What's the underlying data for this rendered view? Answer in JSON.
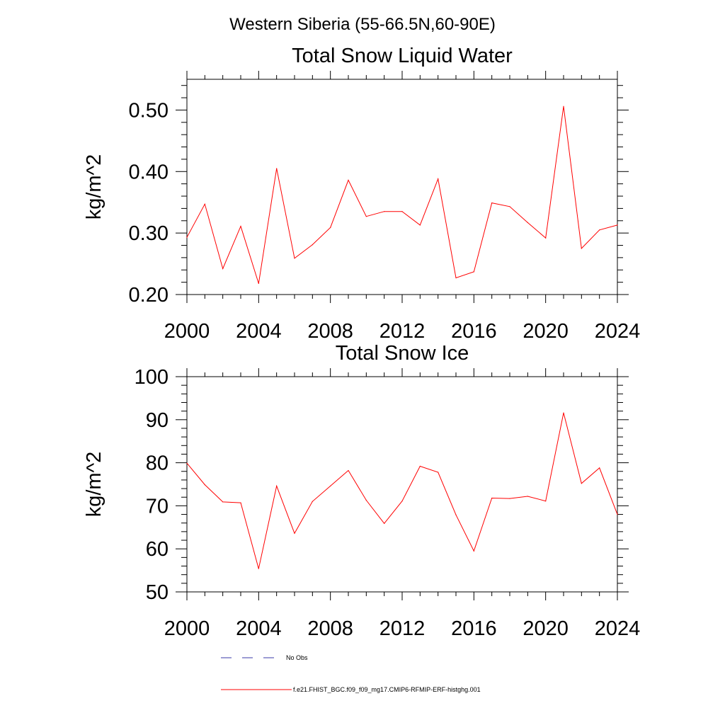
{
  "figure": {
    "title": "Western Siberia (55-66.5N,60-90E)",
    "series_color": "#ff0000",
    "obs_color": "#3a3aa8"
  },
  "legend": {
    "entries": [
      {
        "label": "No Obs",
        "style": "dashed"
      },
      {
        "label": "f.e21.FHIST_BGC.f09_f09_mg17.CMIP6-RFMIP-ERF-histghg.001",
        "style": "solid"
      }
    ]
  },
  "chart_data": [
    {
      "type": "line",
      "title": "Total Snow Liquid Water",
      "xlabel": "",
      "ylabel": "kg/m^2",
      "xlim": [
        2000,
        2024
      ],
      "ylim": [
        0.2,
        0.55
      ],
      "xticks": [
        2000,
        2004,
        2008,
        2012,
        2016,
        2020,
        2024
      ],
      "xtick_labels": [
        "2000",
        "2004",
        "2008",
        "2012",
        "2016",
        "2020",
        "2024"
      ],
      "yticks": [
        0.2,
        0.3,
        0.4,
        0.5
      ],
      "ytick_labels": [
        "0.20",
        "0.30",
        "0.40",
        "0.50"
      ],
      "yminor": 0.02,
      "series": [
        {
          "name": "f.e21.FHIST_BGC.f09_f09_mg17.CMIP6-RFMIP-ERF-histghg.001",
          "x": [
            2000,
            2001,
            2002,
            2003,
            2004,
            2005,
            2006,
            2007,
            2008,
            2009,
            2010,
            2011,
            2012,
            2013,
            2014,
            2015,
            2016,
            2017,
            2018,
            2019,
            2020,
            2021,
            2022,
            2023,
            2024
          ],
          "values": [
            0.293,
            0.347,
            0.242,
            0.311,
            0.218,
            0.405,
            0.259,
            0.281,
            0.309,
            0.386,
            0.327,
            0.335,
            0.335,
            0.313,
            0.388,
            0.227,
            0.237,
            0.349,
            0.343,
            0.317,
            0.292,
            0.506,
            0.275,
            0.305,
            0.313
          ]
        }
      ]
    },
    {
      "type": "line",
      "title": "Total Snow Ice",
      "xlabel": "",
      "ylabel": "kg/m^2",
      "xlim": [
        2000,
        2024
      ],
      "ylim": [
        50,
        100
      ],
      "xticks": [
        2000,
        2004,
        2008,
        2012,
        2016,
        2020,
        2024
      ],
      "xtick_labels": [
        "2000",
        "2004",
        "2008",
        "2012",
        "2016",
        "2020",
        "2024"
      ],
      "yticks": [
        50,
        60,
        70,
        80,
        90,
        100
      ],
      "ytick_labels": [
        "50",
        "60",
        "70",
        "80",
        "90",
        "100"
      ],
      "yminor": 2,
      "series": [
        {
          "name": "f.e21.FHIST_BGC.f09_f09_mg17.CMIP6-RFMIP-ERF-histghg.001",
          "x": [
            2000,
            2001,
            2002,
            2003,
            2004,
            2005,
            2006,
            2007,
            2008,
            2009,
            2010,
            2011,
            2012,
            2013,
            2014,
            2015,
            2016,
            2017,
            2018,
            2019,
            2020,
            2021,
            2022,
            2023,
            2024
          ],
          "values": [
            79.9,
            74.9,
            70.9,
            70.7,
            55.4,
            74.6,
            63.6,
            71.0,
            74.6,
            78.2,
            71.3,
            65.9,
            71.1,
            79.2,
            77.8,
            67.9,
            59.5,
            71.8,
            71.7,
            72.2,
            71.1,
            91.6,
            75.2,
            78.8,
            68.0
          ]
        }
      ]
    }
  ]
}
